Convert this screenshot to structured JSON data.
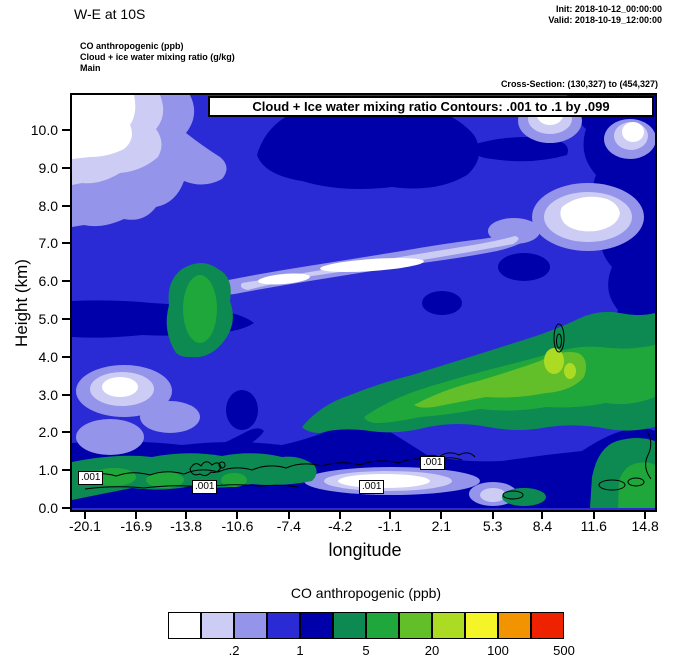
{
  "header": {
    "title": "W-E at 10S",
    "init_label": "Init: 2018-10-12_00:00:00",
    "valid_label": "Valid: 2018-10-19_12:00:00",
    "field_lines": [
      "CO anthropogenic   (ppb)",
      "Cloud + ice water mixing ratio   (g/kg)",
      "Main"
    ],
    "cross_section": "Cross-Section: (130,327) to (454,327)"
  },
  "plot": {
    "contour_note": "Cloud + Ice water mixing ratio Contours: .001 to .1 by .099",
    "contour_labels": [
      ".001",
      ".001",
      ".001",
      ".001"
    ],
    "xlabel": "longitude",
    "ylabel": "Height (km)",
    "yticks": [
      "0.0",
      "1.0",
      "2.0",
      "3.0",
      "4.0",
      "5.0",
      "6.0",
      "7.0",
      "8.0",
      "9.0",
      "10.0"
    ],
    "xticks": [
      "-20.1",
      "-16.9",
      "-13.8",
      "-10.6",
      "-7.4",
      "-4.2",
      "-1.1",
      "2.1",
      "5.3",
      "8.4",
      "11.6",
      "14.8"
    ]
  },
  "legend": {
    "title": "CO anthropogenic  (ppb)",
    "tick_labels": [
      ".2",
      "1",
      "5",
      "20",
      "100",
      "500"
    ],
    "colors": [
      "#ffffff",
      "#ccccf4",
      "#9494ea",
      "#2b2bd5",
      "#0000aa",
      "#0c8a52",
      "#1fa73c",
      "#62bf2a",
      "#acdb24",
      "#f4f428",
      "#f29400",
      "#ef2200"
    ]
  },
  "chart_data": {
    "type": "heatmap",
    "title": "W-E at 10S",
    "xlabel": "longitude",
    "ylabel": "Height (km)",
    "xlim": [
      -20.1,
      14.8
    ],
    "ylim": [
      0,
      10.9
    ],
    "x_ticks": [
      -20.1,
      -16.9,
      -13.8,
      -10.6,
      -7.4,
      -4.2,
      -1.1,
      2.1,
      5.3,
      8.4,
      11.6,
      14.8
    ],
    "y_ticks": [
      0,
      1,
      2,
      3,
      4,
      5,
      6,
      7,
      8,
      9,
      10
    ],
    "fill_field": "CO anthropogenic (ppb)",
    "fill_levels": [
      0.1,
      0.2,
      0.5,
      1,
      2,
      5,
      10,
      20,
      50,
      100,
      200,
      500
    ],
    "fill_colors": [
      "#ffffff",
      "#ccccf4",
      "#9494ea",
      "#2b2bd5",
      "#0000aa",
      "#0c8a52",
      "#1fa73c",
      "#62bf2a",
      "#acdb24",
      "#f4f428",
      "#f29400",
      "#ef2200"
    ],
    "legend_labeled_values": [
      0.2,
      1,
      5,
      20,
      100,
      500
    ],
    "contour_field": "Cloud + Ice water mixing ratio (g/kg)",
    "contour_levels": [
      0.001,
      0.1
    ],
    "contour_note": "Contours: .001 to .1 by .099",
    "contour_inline_labels": [
      {
        "value": 0.001,
        "lon": -19.9,
        "height_km": 0.8
      },
      {
        "value": 0.001,
        "lon": -12.4,
        "height_km": 0.55
      },
      {
        "value": 0.001,
        "lon": -1.9,
        "height_km": 0.55
      },
      {
        "value": 0.001,
        "lon": 1.9,
        "height_km": 1.2
      }
    ],
    "grid_longitudes": [
      -20.1,
      -16.9,
      -13.8,
      -10.6,
      -7.4,
      -4.2,
      -1.1,
      2.1,
      5.3,
      8.4,
      11.6,
      14.8
    ],
    "grid_heights_km": [
      10,
      9,
      8,
      7,
      6,
      5,
      4,
      3,
      2,
      1,
      0
    ],
    "values_note": "CO (ppb) estimated from fill colors; values are color-class midpoints",
    "co_ppb_estimated": [
      [
        0.05,
        0.15,
        0.7,
        0.7,
        1.5,
        1.5,
        1.5,
        0.7,
        0.7,
        0.3,
        0.7,
        1.5
      ],
      [
        0.05,
        0.3,
        0.7,
        0.7,
        0.7,
        1.5,
        1.5,
        0.7,
        0.7,
        0.7,
        0.7,
        1.5
      ],
      [
        0.15,
        0.3,
        0.7,
        0.7,
        0.7,
        1.5,
        1.5,
        0.7,
        0.7,
        0.7,
        0.05,
        0.7
      ],
      [
        0.7,
        0.7,
        0.3,
        0.15,
        0.05,
        0.15,
        0.3,
        0.7,
        0.7,
        0.7,
        0.05,
        1.5
      ],
      [
        0.7,
        0.7,
        1.5,
        0.3,
        0.15,
        0.15,
        0.3,
        0.7,
        1.5,
        1.5,
        0.7,
        1.5
      ],
      [
        1.5,
        1.5,
        3.5,
        1.5,
        0.7,
        0.7,
        1.5,
        3.5,
        3.5,
        7,
        1.5,
        3.5
      ],
      [
        0.7,
        1.5,
        3.5,
        3.5,
        1.5,
        3.5,
        7,
        7,
        7,
        30,
        7,
        3.5
      ],
      [
        0.3,
        0.15,
        0.7,
        1.5,
        3.5,
        7,
        7,
        7,
        7,
        7,
        7,
        3.5
      ],
      [
        0.3,
        0.3,
        0.7,
        1.5,
        3.5,
        7,
        7,
        7,
        3.5,
        3.5,
        3.5,
        3.5
      ],
      [
        3.5,
        7,
        7,
        3.5,
        1.5,
        0.15,
        0.3,
        1.5,
        1.5,
        1.5,
        1.5,
        7
      ],
      [
        3.5,
        3.5,
        7,
        3.5,
        1.5,
        0.7,
        1.5,
        1.5,
        0.3,
        1.5,
        3.5,
        7
      ]
    ],
    "legend_position": "bottom",
    "grid": false
  }
}
